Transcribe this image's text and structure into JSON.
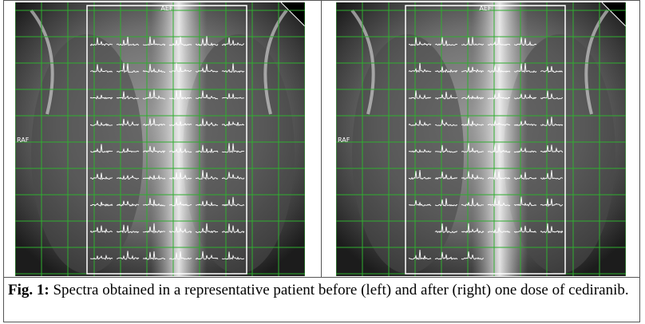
{
  "figure": {
    "panels": [
      {
        "top_label": "AEF",
        "side_label": "RAF"
      },
      {
        "top_label": "AEF",
        "side_label": "RAF"
      }
    ],
    "caption": {
      "label": "Fig. 1:",
      "text": "Spectra obtained in a representative patient before (left) and after (right) one dose of cediranib."
    }
  }
}
